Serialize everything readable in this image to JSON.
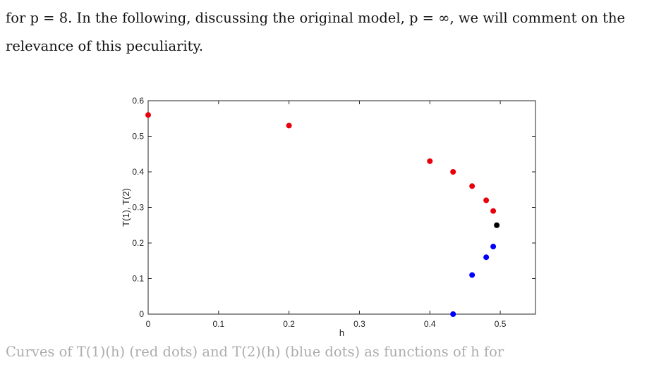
{
  "paragraph": {
    "line1": "for p = 8. In the following, discussing the original model, p = ∞, we will comment on the",
    "line2": "relevance of this peculiarity."
  },
  "chart_data": {
    "type": "scatter",
    "xlabel": "h",
    "ylabel": "T(1), T(2)",
    "xlim": [
      0,
      0.55
    ],
    "ylim": [
      0,
      0.6
    ],
    "xticks": [
      "0",
      "0.1",
      "0.2",
      "0.3",
      "0.4",
      "0.5"
    ],
    "yticks": [
      "0",
      "0.1",
      "0.2",
      "0.3",
      "0.4",
      "0.5",
      "0.6"
    ],
    "grid": false,
    "series": [
      {
        "color": "#e8000b",
        "points": [
          [
            0,
            0.56
          ],
          [
            0.2,
            0.53
          ],
          [
            0.4,
            0.43
          ],
          [
            0.433,
            0.4
          ],
          [
            0.46,
            0.36
          ],
          [
            0.48,
            0.32
          ],
          [
            0.49,
            0.29
          ]
        ]
      },
      {
        "color": "#000000",
        "points": [
          [
            0.495,
            0.25
          ]
        ]
      },
      {
        "color": "#0000ff",
        "points": [
          [
            0.49,
            0.19
          ],
          [
            0.48,
            0.16
          ],
          [
            0.46,
            0.11
          ],
          [
            0.433,
            0.0
          ]
        ]
      }
    ]
  },
  "caption": {
    "text": "Curves of T(1)(h) (red dots) and T(2)(h) (blue dots) as functions of h for"
  }
}
